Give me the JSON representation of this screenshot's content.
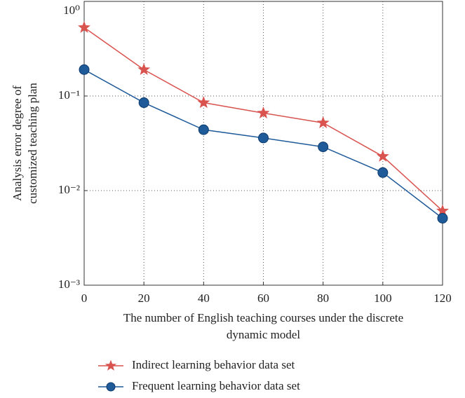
{
  "chart_data": {
    "type": "line",
    "xlabel": [
      "The number of English teaching courses under the discrete",
      "dynamic model"
    ],
    "ylabel": [
      "Analysis error degree of",
      "customized teaching plan"
    ],
    "x": [
      0,
      20,
      40,
      60,
      80,
      100,
      120
    ],
    "series": [
      {
        "name": "Indirect learning behavior data set",
        "color": "#d9534f",
        "marker": "star",
        "values": [
          0.53,
          0.19,
          0.085,
          0.066,
          0.052,
          0.023,
          0.0061
        ]
      },
      {
        "name": "Frequent learning behavior data set",
        "color": "#1f5a99",
        "marker": "circle",
        "values": [
          0.19,
          0.085,
          0.044,
          0.036,
          0.029,
          0.0155,
          0.0051
        ]
      }
    ],
    "xlim": [
      0,
      120
    ],
    "xticks": [
      0,
      20,
      40,
      60,
      80,
      100,
      120
    ],
    "ylim": [
      0.001,
      1
    ],
    "log_y": true,
    "yticks": [
      {
        "value": 1,
        "label": "10⁰"
      },
      {
        "value": 0.1,
        "label": "10⁻¹"
      },
      {
        "value": 0.01,
        "label": "10⁻²"
      },
      {
        "value": 0.001,
        "label": "10⁻³"
      }
    ],
    "grid": true,
    "legend": "below"
  }
}
